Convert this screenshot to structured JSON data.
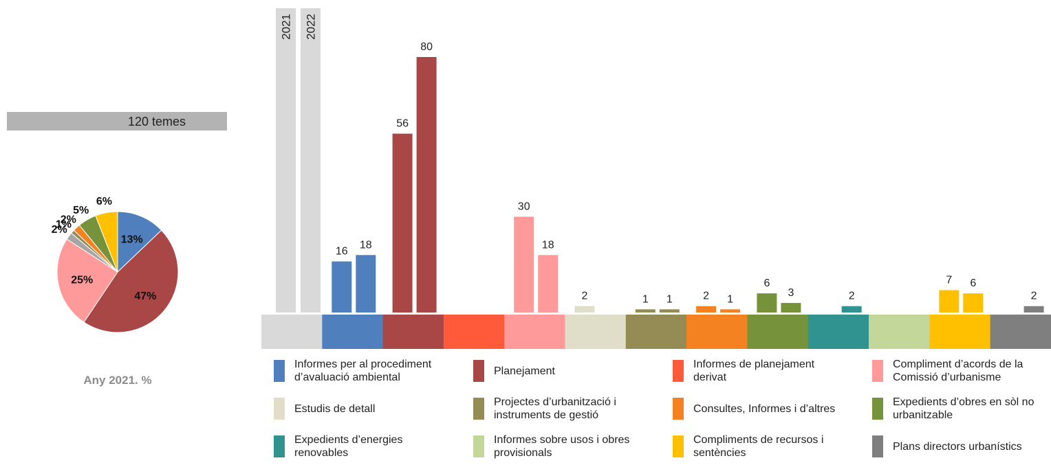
{
  "chart_data": [
    {
      "type": "bar",
      "categories": [
        "Informes per al procediment d’avaluació ambiental",
        "Planejament",
        "Informes de planejament derivat",
        "Compliment d’acords de la Comissió d’urbanisme",
        "Estudis de detall",
        "Projectes d’urbanització i instruments de gestió",
        "Consultes, Informes i d’altres",
        "Expedients d’obres en sòl no urbanitzable",
        "Expedients d’energies renovables",
        "Informes sobre usos i obres provisionals",
        "Compliments de recursos i sentències",
        "Plans directors urbanístics"
      ],
      "colors": [
        "#4f7fbd",
        "#a94646",
        "#ff5b3b",
        "#ff9a9a",
        "#e0ddc8",
        "#958b55",
        "#f58220",
        "#76933c",
        "#31938f",
        "#c4d79b",
        "#ffc000",
        "#7f7f7f"
      ],
      "series": [
        {
          "name": "2021",
          "values": [
            16,
            56,
            null,
            30,
            2,
            1,
            2,
            6,
            null,
            null,
            7,
            null
          ]
        },
        {
          "name": "2022",
          "values": [
            18,
            80,
            null,
            18,
            null,
            1,
            1,
            3,
            2,
            null,
            6,
            2
          ]
        }
      ]
    },
    {
      "type": "pie",
      "title": "120 temes",
      "subtitle": "Any 2021. %",
      "values": [
        13,
        47,
        25,
        2,
        1,
        2,
        5,
        6
      ],
      "value_labels": [
        "13%",
        "47%",
        "25%",
        "2%",
        "1%",
        "2%",
        "5%",
        "6%"
      ],
      "colors": [
        "#4f7fbd",
        "#a94646",
        "#ff9a9a",
        "#a6a6a6",
        "#958b55",
        "#f58220",
        "#76933c",
        "#ffc000"
      ]
    }
  ]
}
